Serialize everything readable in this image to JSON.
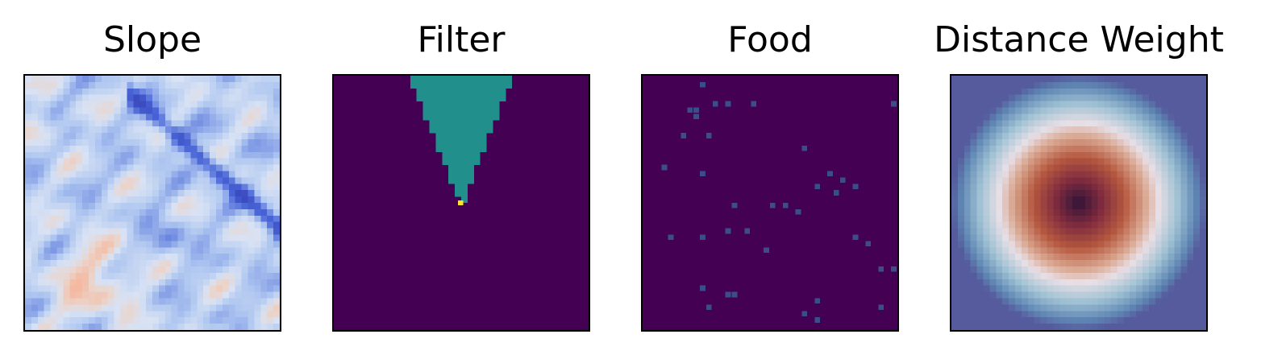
{
  "chart_data": [
    {
      "type": "heatmap",
      "title": "Slope",
      "colormap": "coolwarm",
      "grid_size": 40,
      "colors": {
        "low": "#4a66d8",
        "mid": "#d8e2f4",
        "high": "#f4b9a0"
      },
      "description": "continuous terrain slope field with dark blue diagonal ridge running from top-center to lower-right"
    },
    {
      "type": "heatmap",
      "title": "Filter",
      "colormap": "viridis",
      "grid_size": 40,
      "colors": {
        "background": "#440154",
        "cone": "#21908d",
        "agent": "#fde725"
      },
      "values_legend": {
        "outside": 0,
        "in_view": 0.5,
        "agent": 1
      },
      "cone": {
        "apex": [
          20,
          20
        ],
        "opening": "up",
        "top_span": [
          13,
          29
        ]
      }
    },
    {
      "type": "heatmap",
      "title": "Food",
      "colormap": "viridis",
      "grid_size": 40,
      "colors": {
        "background": "#440154",
        "food": "#3b4e8a"
      },
      "food_cells": [
        [
          9,
          1
        ],
        [
          7,
          5
        ],
        [
          8,
          5
        ],
        [
          17,
          4
        ],
        [
          13,
          4
        ],
        [
          11,
          4
        ],
        [
          39,
          4
        ],
        [
          8,
          6
        ],
        [
          6,
          9
        ],
        [
          10,
          9
        ],
        [
          25,
          11
        ],
        [
          3,
          14
        ],
        [
          9,
          15
        ],
        [
          29,
          15
        ],
        [
          31,
          16
        ],
        [
          27,
          17
        ],
        [
          30,
          18
        ],
        [
          22,
          20
        ],
        [
          20,
          20
        ],
        [
          14,
          20
        ],
        [
          24,
          21
        ],
        [
          33,
          17
        ],
        [
          13,
          24
        ],
        [
          16,
          24
        ],
        [
          4,
          25
        ],
        [
          9,
          25
        ],
        [
          33,
          25
        ],
        [
          19,
          27
        ],
        [
          35,
          26
        ],
        [
          37,
          30
        ],
        [
          39,
          30
        ],
        [
          9,
          33
        ],
        [
          13,
          34
        ],
        [
          14,
          34
        ],
        [
          10,
          36
        ],
        [
          27,
          35
        ],
        [
          25,
          37
        ],
        [
          27,
          38
        ],
        [
          37,
          36
        ]
      ]
    },
    {
      "type": "heatmap",
      "title": "Distance Weight",
      "colormap": "twilight_shifted",
      "grid_size": 40,
      "colors": {
        "center": "#2f1437",
        "inner": "#b5583f",
        "ring": "#e8dfe6",
        "outer": "#5f87b4",
        "corner": "#3c1257"
      }
    }
  ]
}
